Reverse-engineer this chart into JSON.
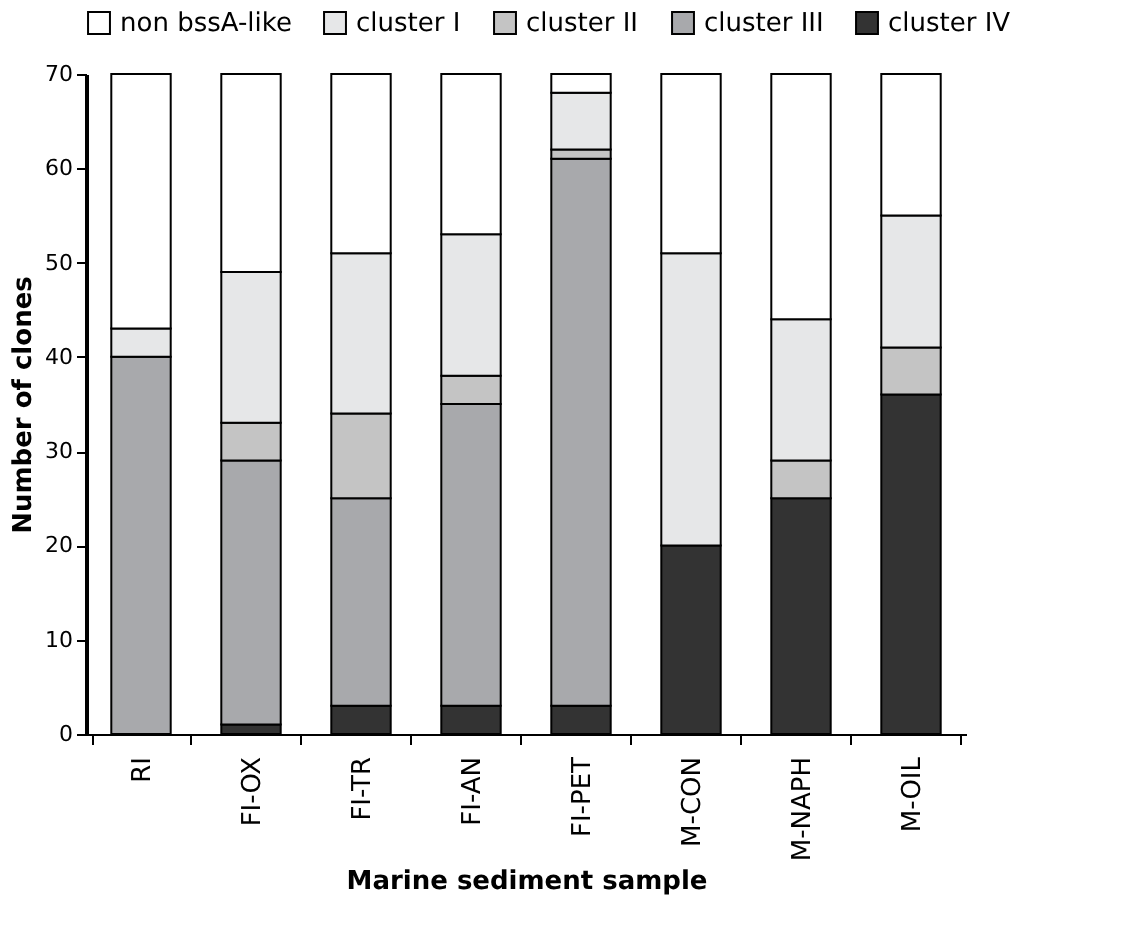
{
  "chart_data": {
    "type": "bar",
    "stacked": true,
    "xlabel": "Marine sediment sample",
    "ylabel": "Number of clones",
    "categories": [
      "RI",
      "FI-OX",
      "FI-TR",
      "FI-AN",
      "FI-PET",
      "M-CON",
      "M-NAPH",
      "M-OIL"
    ],
    "series": [
      {
        "name": "cluster IV",
        "color": "#333333",
        "values": [
          0,
          1,
          3,
          3,
          3,
          20,
          25,
          36
        ]
      },
      {
        "name": "cluster III",
        "color": "#a8a9ac",
        "values": [
          40,
          28,
          22,
          32,
          58,
          0,
          0,
          0
        ]
      },
      {
        "name": "cluster II",
        "color": "#c4c4c4",
        "values": [
          0,
          4,
          9,
          3,
          1,
          0,
          4,
          5
        ]
      },
      {
        "name": "cluster I",
        "color": "#e6e7e8",
        "values": [
          3,
          16,
          17,
          15,
          6,
          31,
          15,
          14
        ]
      },
      {
        "name": "non bssA-like",
        "color": "#ffffff",
        "values": [
          27,
          21,
          19,
          17,
          2,
          19,
          26,
          15
        ]
      }
    ],
    "ylim": [
      0,
      70
    ],
    "yticks": [
      0,
      10,
      20,
      30,
      40,
      50,
      60,
      70
    ],
    "grid": false,
    "legend": "top"
  }
}
